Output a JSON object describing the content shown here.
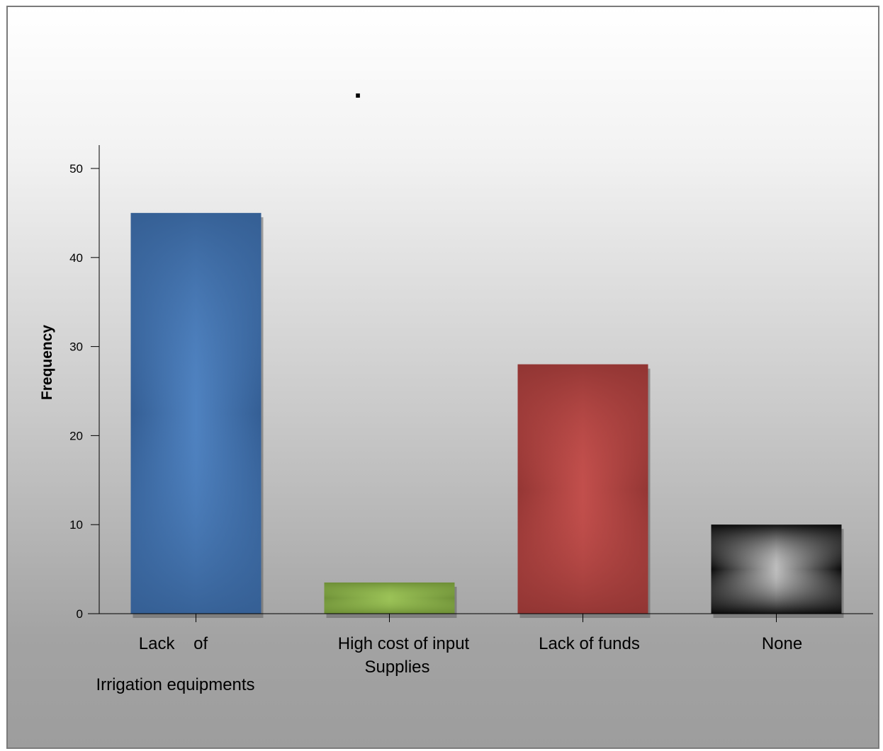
{
  "chart_data": {
    "type": "bar",
    "title": ".",
    "ylabel": "Frequency",
    "xlabel": "",
    "ylim": [
      0,
      52
    ],
    "yticks": [
      0,
      10,
      20,
      30,
      40,
      50
    ],
    "grid": false,
    "legend": "none",
    "categories": [
      [
        "Lack    of",
        "Irrigation equipments"
      ],
      [
        "High cost of input",
        "Supplies"
      ],
      [
        "Lack of funds"
      ],
      [
        "None"
      ]
    ],
    "values": [
      45,
      3.5,
      28,
      10
    ],
    "colors": [
      "#4a7ebb",
      "#8cb24c",
      "#c0504d",
      "#9a9a9a"
    ]
  }
}
